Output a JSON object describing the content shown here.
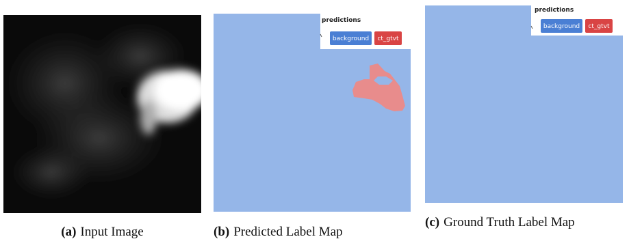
{
  "figure": {
    "panels": [
      {
        "label": "(a)",
        "caption": "Input Image"
      },
      {
        "label": "(b)",
        "caption": "Predicted Label Map",
        "legend": {
          "title": "predictions",
          "items": [
            "background",
            "ct_gtvt"
          ]
        }
      },
      {
        "label": "(c)",
        "caption": "Ground Truth Label Map",
        "legend": {
          "title": "predictions",
          "items": [
            "background",
            "ct_gtvt"
          ]
        }
      }
    ]
  }
}
